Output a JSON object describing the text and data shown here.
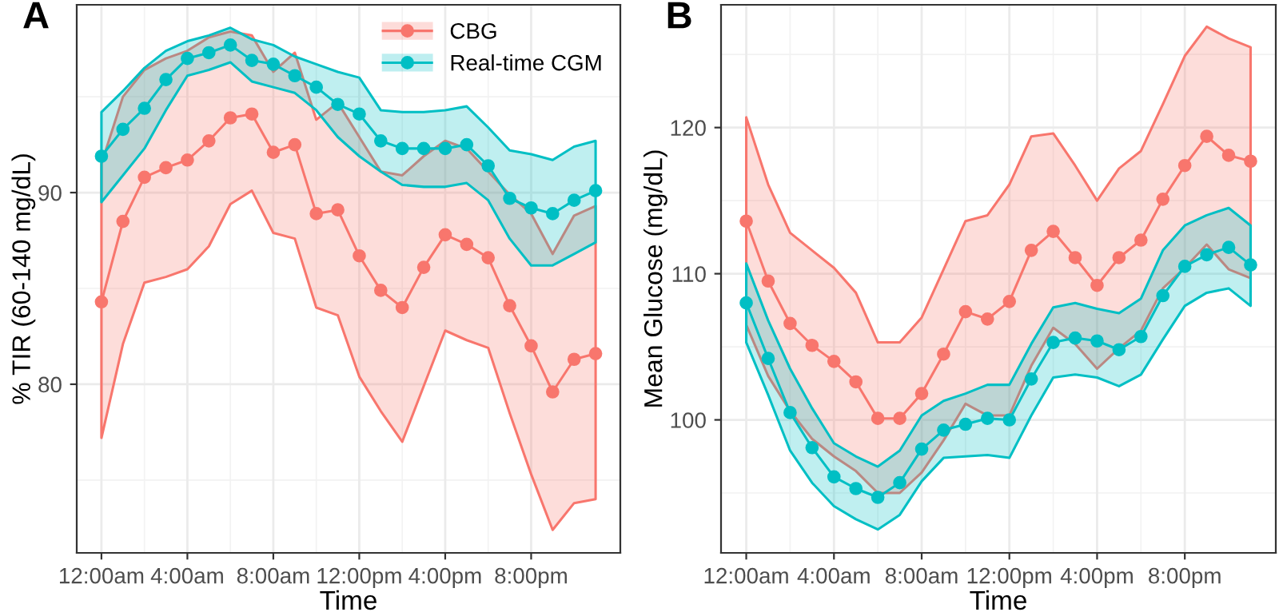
{
  "chart_data": [
    {
      "type": "line",
      "title": "A",
      "xlabel": "Time",
      "ylabel": "% TIR (60-140 mg/dL)",
      "x": [
        0,
        1,
        2,
        3,
        4,
        5,
        6,
        7,
        8,
        9,
        10,
        11,
        12,
        13,
        14,
        15,
        16,
        17,
        18,
        19,
        20,
        21,
        22,
        23
      ],
      "series": [
        {
          "name": "CBG",
          "color": "#f8766d",
          "values": [
            84.3,
            88.5,
            90.8,
            91.3,
            91.7,
            92.7,
            93.9,
            94.1,
            92.1,
            92.5,
            88.9,
            89.1,
            86.7,
            84.9,
            84.0,
            86.1,
            87.8,
            87.3,
            86.6,
            84.1,
            82.0,
            79.6,
            81.3,
            81.6
          ],
          "lower": [
            77.2,
            82.1,
            85.3,
            85.6,
            86.0,
            87.2,
            89.4,
            90.1,
            87.9,
            87.6,
            84.0,
            83.6,
            80.4,
            78.6,
            77.0,
            79.9,
            82.8,
            82.3,
            81.9,
            78.5,
            75.3,
            72.4,
            73.8,
            74.0
          ],
          "upper": [
            91.5,
            95.0,
            96.4,
            97.0,
            97.4,
            98.1,
            98.4,
            98.2,
            96.3,
            97.3,
            93.8,
            94.7,
            92.9,
            91.1,
            90.9,
            91.9,
            92.7,
            92.3,
            91.1,
            89.9,
            88.9,
            86.8,
            88.8,
            89.3
          ]
        },
        {
          "name": "Real-time CGM",
          "color": "#00bfc4",
          "values": [
            91.9,
            93.3,
            94.4,
            95.9,
            97.0,
            97.3,
            97.7,
            96.9,
            96.7,
            96.1,
            95.5,
            94.6,
            94.1,
            92.7,
            92.3,
            92.3,
            92.3,
            92.5,
            91.4,
            89.7,
            89.2,
            88.9,
            89.6,
            90.1
          ],
          "lower": [
            89.5,
            90.9,
            92.3,
            94.3,
            96.1,
            96.4,
            96.8,
            95.8,
            95.5,
            95.2,
            94.3,
            92.9,
            91.9,
            91.1,
            90.4,
            90.3,
            90.3,
            90.5,
            89.6,
            87.6,
            86.2,
            86.2,
            86.8,
            87.4
          ],
          "upper": [
            94.2,
            95.3,
            96.5,
            97.4,
            97.9,
            98.2,
            98.6,
            98.0,
            97.7,
            97.1,
            96.7,
            96.3,
            96.0,
            94.3,
            94.2,
            94.2,
            94.3,
            94.5,
            93.4,
            92.2,
            92.0,
            91.7,
            92.4,
            92.7
          ]
        }
      ],
      "xlim": [
        -1.15,
        24.15
      ],
      "ylim": [
        71.2,
        99.8
      ],
      "xticks": [
        {
          "value": 0,
          "label": "12:00am"
        },
        {
          "value": 4,
          "label": "4:00am"
        },
        {
          "value": 8,
          "label": "8:00am"
        },
        {
          "value": 12,
          "label": "12:00pm"
        },
        {
          "value": 16,
          "label": "4:00pm"
        },
        {
          "value": 20,
          "label": "8:00pm"
        }
      ],
      "yticks": [
        80,
        90
      ],
      "grid": true,
      "legend": "top right",
      "marker": "circle",
      "line_style": "solid"
    },
    {
      "type": "line",
      "title": "B",
      "xlabel": "Time",
      "ylabel": "Mean Glucose (mg/dL)",
      "x": [
        0,
        1,
        2,
        3,
        4,
        5,
        6,
        7,
        8,
        9,
        10,
        11,
        12,
        13,
        14,
        15,
        16,
        17,
        18,
        19,
        20,
        21,
        22,
        23
      ],
      "series": [
        {
          "color": "#f8766d",
          "values": [
            113.6,
            109.5,
            106.6,
            105.1,
            104.0,
            102.6,
            100.1,
            100.1,
            101.8,
            104.5,
            107.4,
            106.9,
            108.1,
            111.6,
            112.9,
            111.1,
            109.2,
            111.1,
            112.3,
            115.1,
            117.4,
            119.4,
            118.1,
            117.7
          ],
          "lower": [
            106.5,
            103.0,
            100.6,
            98.7,
            97.5,
            96.5,
            95.0,
            95.0,
            96.4,
            98.6,
            101.1,
            100.3,
            100.3,
            103.7,
            106.3,
            105.2,
            103.5,
            104.9,
            106.1,
            109.0,
            110.4,
            112.0,
            110.3,
            109.7
          ],
          "upper": [
            120.7,
            116.1,
            112.8,
            111.6,
            110.4,
            108.7,
            105.3,
            105.3,
            107.0,
            110.3,
            113.6,
            114.0,
            116.1,
            119.4,
            119.6,
            117.4,
            115.0,
            117.2,
            118.4,
            121.6,
            124.9,
            126.9,
            126.1,
            125.5
          ]
        },
        {
          "color": "#00bfc4",
          "values": [
            108.0,
            104.2,
            100.5,
            98.1,
            96.1,
            95.3,
            94.7,
            95.7,
            98.0,
            99.3,
            99.7,
            100.1,
            100.0,
            102.8,
            105.3,
            105.6,
            105.4,
            104.8,
            105.7,
            108.5,
            110.5,
            111.3,
            111.8,
            110.6
          ],
          "lower": [
            105.3,
            101.7,
            97.9,
            95.7,
            94.1,
            93.2,
            92.5,
            93.5,
            95.8,
            97.4,
            97.5,
            97.6,
            97.4,
            100.3,
            102.9,
            103.1,
            102.9,
            102.3,
            103.1,
            105.5,
            107.8,
            108.7,
            109.0,
            107.8
          ],
          "upper": [
            110.7,
            106.8,
            103.5,
            100.8,
            98.4,
            97.5,
            96.8,
            97.9,
            100.3,
            101.3,
            101.8,
            102.4,
            102.4,
            105.2,
            107.7,
            108.0,
            107.6,
            107.3,
            108.3,
            111.6,
            113.3,
            114.0,
            114.5,
            113.3
          ]
        }
      ],
      "xlim": [
        -1.15,
        24.15
      ],
      "ylim": [
        90.9,
        128.4
      ],
      "xticks": [
        {
          "value": 0,
          "label": "12:00am"
        },
        {
          "value": 4,
          "label": "4:00am"
        },
        {
          "value": 8,
          "label": "8:00am"
        },
        {
          "value": 12,
          "label": "12:00pm"
        },
        {
          "value": 16,
          "label": "4:00pm"
        },
        {
          "value": 20,
          "label": "8:00pm"
        }
      ],
      "yticks": [
        100,
        110,
        120
      ],
      "grid": true,
      "marker": "circle",
      "line_style": "solid"
    }
  ]
}
